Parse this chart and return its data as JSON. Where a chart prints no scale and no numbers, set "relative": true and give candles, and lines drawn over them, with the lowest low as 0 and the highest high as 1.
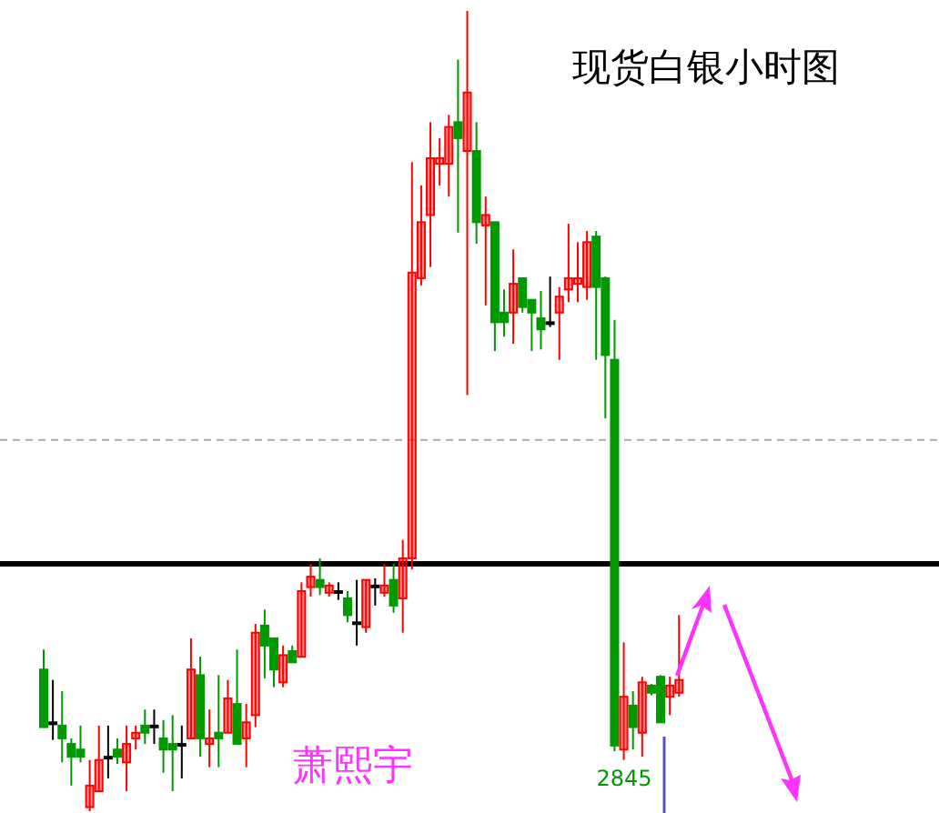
{
  "chart_data": {
    "type": "candlestick",
    "title": "现货白银小时图",
    "relative": true,
    "categories": [
      null,
      null,
      null,
      null,
      null,
      null,
      null,
      null,
      null,
      null,
      null,
      null,
      null,
      null,
      null,
      null,
      null,
      null,
      null,
      null,
      null,
      null,
      null,
      null,
      null,
      null,
      null,
      null,
      null,
      null,
      null,
      null,
      null,
      null,
      null,
      null,
      null,
      null,
      null,
      null,
      null,
      null,
      null,
      null,
      null,
      null,
      null,
      null,
      null,
      null,
      null,
      null,
      null,
      null,
      null,
      null,
      null,
      null,
      null,
      null,
      null,
      null,
      null,
      null,
      null,
      null,
      null,
      null,
      null,
      null
    ],
    "ohlc": [
      [
        0.177,
        0.202,
        0.105,
        0.105
      ],
      [
        0.111,
        0.164,
        0.089,
        0.111
      ],
      [
        0.107,
        0.15,
        0.061,
        0.091
      ],
      [
        0.084,
        0.091,
        0.032,
        0.068
      ],
      [
        0.077,
        0.107,
        0.061,
        0.068
      ],
      [
        0.005,
        0.064,
        0,
        0.032
      ],
      [
        0.025,
        0.107,
        0.025,
        0.064
      ],
      [
        0.068,
        0.107,
        0.041,
        0.068
      ],
      [
        0.077,
        0.091,
        0.059,
        0.068
      ],
      [
        0.061,
        0.107,
        0.025,
        0.084
      ],
      [
        0.091,
        0.107,
        0.077,
        0.098
      ],
      [
        0.107,
        0.127,
        0.084,
        0.098
      ],
      [
        0.107,
        0.127,
        0.084,
        0.107
      ],
      [
        0.091,
        0.114,
        0.048,
        0.077
      ],
      [
        0.084,
        0.12,
        0.025,
        0.077
      ],
      [
        0.084,
        0.107,
        0.041,
        0.084
      ],
      [
        0.091,
        0.216,
        0.091,
        0.177
      ],
      [
        0.17,
        0.193,
        0.068,
        0.091
      ],
      [
        0.084,
        0.127,
        0.055,
        0.091
      ],
      [
        0.098,
        0.17,
        0.055,
        0.091
      ],
      [
        0.098,
        0.164,
        0.098,
        0.141
      ],
      [
        0.134,
        0.202,
        0.084,
        0.084
      ],
      [
        0.091,
        0.134,
        0.055,
        0.111
      ],
      [
        0.12,
        0.234,
        0.105,
        0.223
      ],
      [
        0.232,
        0.252,
        0.166,
        0.207
      ],
      [
        0.216,
        0.216,
        0.155,
        0.177
      ],
      [
        0.161,
        0.207,
        0.155,
        0.195
      ],
      [
        0.2,
        0.207,
        0.186,
        0.186
      ],
      [
        0.193,
        0.286,
        0.193,
        0.275
      ],
      [
        0.28,
        0.309,
        0.268,
        0.293
      ],
      [
        0.289,
        0.316,
        0.27,
        0.28
      ],
      [
        0.273,
        0.286,
        0.268,
        0.282
      ],
      [
        0.275,
        0.286,
        0.264,
        0.275
      ],
      [
        0.266,
        0.275,
        0.236,
        0.245
      ],
      [
        0.236,
        0.289,
        0.207,
        0.236
      ],
      [
        0.23,
        0.289,
        0.223,
        0.289
      ],
      [
        0.282,
        0.291,
        0.257,
        0.282
      ],
      [
        0.273,
        0.309,
        0.268,
        0.282
      ],
      [
        0.289,
        0.309,
        0.248,
        0.257
      ],
      [
        0.266,
        0.339,
        0.223,
        0.316
      ],
      [
        0.316,
        0.811,
        0.302,
        0.673
      ],
      [
        0.666,
        0.782,
        0.657,
        0.736
      ],
      [
        0.745,
        0.861,
        0.68,
        0.816
      ],
      [
        0.809,
        0.841,
        0.782,
        0.816
      ],
      [
        0.809,
        0.87,
        0.768,
        0.855
      ],
      [
        0.861,
        0.939,
        0.723,
        0.841
      ],
      [
        0.825,
        1,
        0.52,
        0.898
      ],
      [
        0.825,
        0.861,
        0.709,
        0.736
      ],
      [
        0.732,
        0.768,
        0.632,
        0.745
      ],
      [
        0.736,
        0.736,
        0.575,
        0.611
      ],
      [
        0.623,
        0.652,
        0.593,
        0.611
      ],
      [
        0.623,
        0.702,
        0.584,
        0.659
      ],
      [
        0.666,
        0.666,
        0.623,
        0.63
      ],
      [
        0.639,
        0.639,
        0.575,
        0.623
      ],
      [
        0.616,
        0.65,
        0.577,
        0.602
      ],
      [
        0.611,
        0.668,
        0.605,
        0.611
      ],
      [
        0.623,
        0.655,
        0.564,
        0.643
      ],
      [
        0.652,
        0.734,
        0.636,
        0.666
      ],
      [
        0.659,
        0.711,
        0.636,
        0.666
      ],
      [
        0.655,
        0.725,
        0.639,
        0.711
      ],
      [
        0.718,
        0.725,
        0.564,
        0.655
      ],
      [
        0.666,
        0.668,
        0.491,
        0.57
      ],
      [
        0.564,
        0.614,
        0.075,
        0.082
      ],
      [
        0.077,
        0.211,
        0.064,
        0.143
      ],
      [
        0.132,
        0.15,
        0.077,
        0.105
      ],
      [
        0.098,
        0.168,
        0.068,
        0.161
      ],
      [
        0.157,
        0.159,
        0.145,
        0.148
      ],
      [
        0.168,
        0.17,
        0.111,
        0.111
      ],
      [
        0.143,
        0.168,
        0.12,
        0.157
      ],
      [
        0.148,
        0.245,
        0.143,
        0.164
      ]
    ],
    "colors": [
      "#009900",
      "#000000",
      "#009900",
      "#009900",
      "#009900",
      "#ff0000",
      "#ff0000",
      "#000000",
      "#009900",
      "#ff0000",
      "#ff0000",
      "#009900",
      "#000000",
      "#009900",
      "#009900",
      "#000000",
      "#ff0000",
      "#009900",
      "#ff0000",
      "#009900",
      "#ff0000",
      "#009900",
      "#ff0000",
      "#ff0000",
      "#009900",
      "#009900",
      "#ff0000",
      "#009900",
      "#ff0000",
      "#ff0000",
      "#009900",
      "#ff0000",
      "#000000",
      "#009900",
      "#000000",
      "#ff0000",
      "#000000",
      "#ff0000",
      "#009900",
      "#ff0000",
      "#ff0000",
      "#ff0000",
      "#ff0000",
      "#ff0000",
      "#ff0000",
      "#009900",
      "#ff0000",
      "#009900",
      "#ff0000",
      "#009900",
      "#009900",
      "#ff0000",
      "#009900",
      "#009900",
      "#009900",
      "#000000",
      "#ff0000",
      "#ff0000",
      "#ff0000",
      "#ff0000",
      "#009900",
      "#009900",
      "#009900",
      "#ff0000",
      "#009900",
      "#ff0000",
      "#009900",
      "#009900",
      "#ff0000",
      "#ff0000"
    ],
    "ref_lines": [
      {
        "axis": "y",
        "value": 0.309,
        "color": "#000000",
        "line_style": "solid"
      },
      {
        "axis": "y",
        "value": 0.464,
        "color": "#aaaaaa",
        "line_style": "dashed"
      }
    ],
    "annotations": [
      "2845",
      "萧熙宇"
    ]
  }
}
